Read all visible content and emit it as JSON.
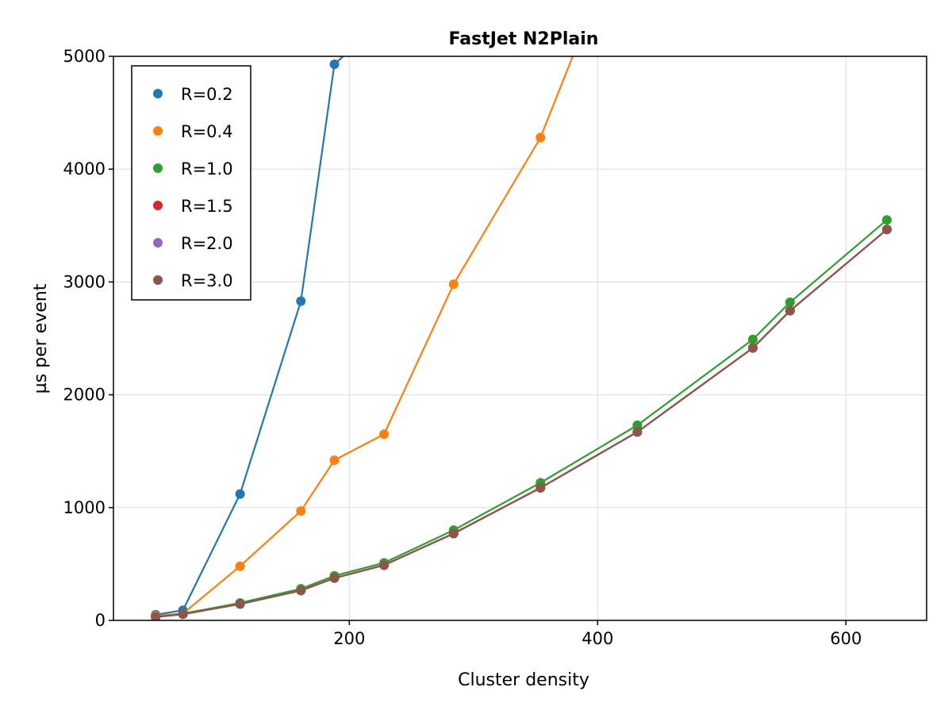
{
  "chart_data": {
    "type": "line",
    "title": "FastJet N2Plain",
    "xlabel": "Cluster density",
    "ylabel": "µs per event",
    "xlim": [
      10,
      665
    ],
    "ylim": [
      0,
      5000
    ],
    "xticks": [
      200,
      400,
      600
    ],
    "yticks": [
      0,
      1000,
      2000,
      3000,
      4000,
      5000
    ],
    "grid": true,
    "legend_position": "top-left",
    "series": [
      {
        "name": "R=0.2",
        "color": "#1f77b4",
        "x": [
          44,
          66,
          112,
          161,
          188,
          195
        ],
        "y": [
          50,
          90,
          1120,
          2830,
          4930,
          5000
        ]
      },
      {
        "name": "R=0.4",
        "color": "#ff7f0e",
        "x": [
          44,
          66,
          112,
          161,
          188,
          228,
          284,
          354,
          380
        ],
        "y": [
          40,
          60,
          480,
          970,
          1420,
          1650,
          2980,
          4280,
          5000
        ]
      },
      {
        "name": "R=1.0",
        "color": "#2ca02c",
        "x": [
          44,
          66,
          112,
          161,
          188,
          228,
          284,
          354,
          432,
          525,
          555,
          633
        ],
        "y": [
          30,
          60,
          155,
          280,
          395,
          510,
          800,
          1220,
          1730,
          2490,
          2820,
          3550
        ]
      },
      {
        "name": "R=1.5",
        "color": "#d62728",
        "x": [
          44,
          66,
          112,
          161,
          188,
          228,
          284,
          354,
          432,
          525,
          555,
          633
        ],
        "y": [
          30,
          55,
          145,
          265,
          375,
          490,
          770,
          1175,
          1670,
          2415,
          2745,
          3465
        ]
      },
      {
        "name": "R=2.0",
        "color": "#9467bd",
        "x": [
          44,
          66,
          112,
          161,
          188,
          228,
          284,
          354,
          432,
          525,
          555,
          633
        ],
        "y": [
          30,
          55,
          145,
          265,
          375,
          490,
          770,
          1175,
          1670,
          2415,
          2745,
          3465
        ]
      },
      {
        "name": "R=3.0",
        "color": "#8c564b",
        "x": [
          44,
          66,
          112,
          161,
          188,
          228,
          284,
          354,
          432,
          525,
          555,
          633
        ],
        "y": [
          30,
          55,
          145,
          265,
          375,
          490,
          770,
          1175,
          1670,
          2415,
          2745,
          3465
        ]
      }
    ]
  }
}
